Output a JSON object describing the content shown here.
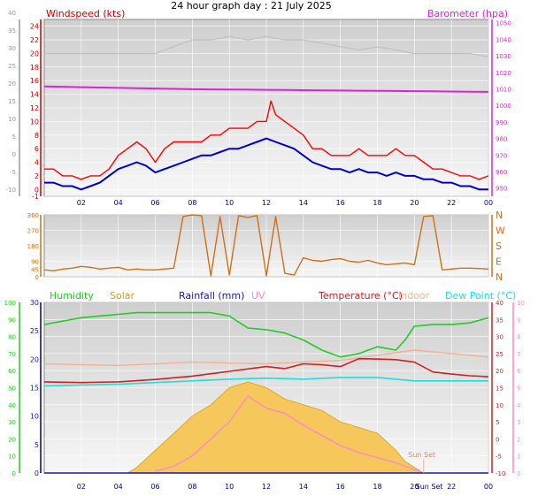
{
  "title": "24 hour graph day : 21 July 2025",
  "colors": {
    "wind_axis": "#cc0000",
    "gust_line": "#ff0000",
    "avg_line": "#0000cc",
    "baro": "#dd22dd",
    "gust_grey": "#c0c0c0",
    "dir": "#d07018",
    "humidity": "#22cc22",
    "solar_fill": "#f6c75a",
    "solar_line": "#d4a020",
    "rain": "#1818aa",
    "uv": "#ff88cc",
    "temp": "#cc2222",
    "indoor": "#f5b090",
    "dewpoint": "#22dddd",
    "plot_bg_top": "#cfcfcf",
    "plot_bg_bottom": "#f6f6f6",
    "frame_navy": "#000080"
  },
  "chart_data": [
    {
      "type": "line",
      "panel": "wind-barometer",
      "title": "24 hour graph day : 21 July 2025",
      "left_label": "Windspeed (kts)",
      "right_label": "Barometer (hpa)",
      "x_ticks": [
        "02",
        "04",
        "06",
        "08",
        "10",
        "12",
        "14",
        "16",
        "18",
        "20",
        "22",
        "00"
      ],
      "x_range_hours": [
        0,
        24
      ],
      "y_left_ticks": [
        "-1",
        "0",
        "2",
        "4",
        "6",
        "8",
        "10",
        "12",
        "14",
        "16",
        "18",
        "20",
        "22",
        "24"
      ],
      "y_outer_ticks": [
        "-10",
        "-5",
        "0",
        "5",
        "10",
        "15",
        "20",
        "25",
        "30",
        "35",
        "40"
      ],
      "y_right_ticks": [
        "950",
        "960",
        "970",
        "980",
        "990",
        "1000",
        "1010",
        "1020",
        "1030",
        "1040",
        "1050"
      ],
      "y_left_range": [
        -1,
        25
      ],
      "y_right_range": [
        945,
        1052
      ],
      "grid": true,
      "series": [
        {
          "name": "Windspeed (kts)",
          "role": "gust",
          "x": [
            0,
            0.5,
            1,
            1.5,
            2,
            2.5,
            3,
            3.5,
            4,
            4.5,
            5,
            5.5,
            6,
            6.5,
            7,
            7.5,
            8,
            8.5,
            9,
            9.5,
            10,
            10.5,
            11,
            11.5,
            12,
            12.25,
            12.5,
            13,
            13.5,
            14,
            14.5,
            15,
            15.5,
            16,
            16.5,
            17,
            17.5,
            18,
            18.5,
            19,
            19.5,
            20,
            20.5,
            21,
            21.5,
            22,
            22.5,
            23,
            23.5,
            24
          ],
          "values": [
            3,
            3,
            2,
            2,
            1.5,
            2,
            2,
            3,
            5,
            6,
            7,
            6,
            4,
            6,
            7,
            7,
            7,
            7,
            8,
            8,
            9,
            9,
            9,
            10,
            10,
            13,
            11,
            10,
            9,
            8,
            6,
            6,
            5,
            5,
            5,
            6,
            5,
            5,
            5,
            6,
            5,
            5,
            4,
            3,
            3,
            2.5,
            2,
            2,
            1.5,
            2
          ]
        },
        {
          "name": "Windspeed (kts)",
          "role": "average",
          "x": [
            0,
            0.5,
            1,
            1.5,
            2,
            2.5,
            3,
            3.5,
            4,
            4.5,
            5,
            5.5,
            6,
            6.5,
            7,
            7.5,
            8,
            8.5,
            9,
            9.5,
            10,
            10.5,
            11,
            11.5,
            12,
            12.5,
            13,
            13.5,
            14,
            14.5,
            15,
            15.5,
            16,
            16.5,
            17,
            17.5,
            18,
            18.5,
            19,
            19.5,
            20,
            20.5,
            21,
            21.5,
            22,
            22.5,
            23,
            23.5,
            24
          ],
          "values": [
            1,
            1,
            0.5,
            0.5,
            0,
            0.5,
            1,
            2,
            3,
            3.5,
            4,
            3.5,
            2.5,
            3,
            3.5,
            4,
            4.5,
            5,
            5,
            5.5,
            6,
            6,
            6.5,
            7,
            7.5,
            7,
            6.5,
            6,
            5,
            4,
            3.5,
            3,
            3,
            2.5,
            3,
            2.5,
            2.5,
            2,
            2.5,
            2,
            2,
            1.5,
            1.5,
            1,
            1,
            0.5,
            0.5,
            0,
            0
          ]
        },
        {
          "name": "Barometer (hpa)",
          "role": "pressure",
          "x": [
            0,
            1,
            2,
            3,
            4,
            5,
            6,
            7,
            8,
            9,
            10,
            11,
            12,
            13,
            14,
            15,
            16,
            17,
            18,
            19,
            20,
            21,
            22,
            23,
            24
          ],
          "values": [
            1011.5,
            1011.3,
            1011,
            1010.8,
            1010.6,
            1010.4,
            1010.2,
            1010,
            1009.8,
            1009.7,
            1009.6,
            1009.5,
            1009.4,
            1009.3,
            1009.2,
            1009.1,
            1009,
            1008.9,
            1008.8,
            1008.7,
            1008.6,
            1008.5,
            1008.4,
            1008.3,
            1008.2
          ]
        },
        {
          "name": "grey trace",
          "role": "secondary",
          "x": [
            0,
            2,
            4,
            6,
            7,
            8,
            9,
            10,
            11,
            12,
            13,
            14,
            15,
            16,
            17,
            18,
            19,
            20,
            21,
            22,
            23,
            24
          ],
          "values": [
            20,
            20,
            20,
            20,
            21,
            22,
            22,
            22.5,
            22,
            22.5,
            22,
            22,
            21.5,
            21,
            20.5,
            21,
            20.5,
            20,
            20,
            20,
            20,
            19.5
          ]
        }
      ]
    },
    {
      "type": "line",
      "panel": "wind-direction",
      "x_range_hours": [
        0,
        24
      ],
      "y_left_ticks": [
        "0",
        "45",
        "90",
        "180",
        "270",
        "360"
      ],
      "y_right_labels": [
        "N",
        "W",
        "S",
        "E",
        "N"
      ],
      "y_range": [
        0,
        360
      ],
      "grid": true,
      "series": [
        {
          "name": "Wind direction",
          "x": [
            0,
            0.5,
            1,
            1.5,
            2,
            2.5,
            3,
            3.5,
            4,
            4.5,
            5,
            5.5,
            6,
            6.5,
            7,
            7.5,
            8,
            8.5,
            9,
            9.5,
            10,
            10.5,
            11,
            11.5,
            12,
            12.5,
            13,
            13.5,
            14,
            14.5,
            15,
            15.5,
            16,
            16.5,
            17,
            17.5,
            18,
            18.5,
            19,
            19.5,
            20,
            20.5,
            21,
            21.5,
            22,
            22.5,
            23,
            23.5,
            24
          ],
          "values": [
            40,
            35,
            45,
            50,
            60,
            55,
            45,
            50,
            55,
            40,
            45,
            40,
            40,
            45,
            50,
            350,
            360,
            355,
            5,
            350,
            10,
            355,
            345,
            355,
            5,
            350,
            20,
            10,
            110,
            95,
            90,
            100,
            105,
            90,
            85,
            95,
            80,
            70,
            75,
            80,
            70,
            350,
            355,
            40,
            45,
            50,
            50,
            48,
            45
          ]
        }
      ]
    },
    {
      "type": "area",
      "panel": "climate",
      "legend": [
        "Humidity",
        "Solar",
        "Rainfall (mm)",
        "UV",
        "Temperature (°C)",
        "Indoor",
        "Dew Point (°C)"
      ],
      "x_ticks": [
        "02",
        "04",
        "06",
        "08",
        "10",
        "12",
        "14",
        "16",
        "18",
        "20",
        "22",
        "00"
      ],
      "x_range_hours": [
        0,
        24
      ],
      "y_humidity_ticks": [
        "0",
        "10",
        "20",
        "30",
        "40",
        "50",
        "60",
        "70",
        "80",
        "90",
        "100"
      ],
      "y_rain_ticks": [
        "0",
        "5",
        "10",
        "15",
        "20",
        "25",
        "30"
      ],
      "y_temp_ticks": [
        "-10",
        "-5",
        "0",
        "5",
        "10",
        "15",
        "20",
        "25",
        "30",
        "35",
        "40"
      ],
      "y_uv_ticks": [
        "0",
        "1",
        "2",
        "3",
        "4",
        "5",
        "6",
        "7",
        "8",
        "9",
        "10"
      ],
      "sun_set_labels": [
        "Sun Set",
        "Sun Set"
      ],
      "grid": true,
      "series": [
        {
          "name": "Humidity",
          "x": [
            0,
            1,
            2,
            3,
            4,
            5,
            6,
            7,
            8,
            9,
            10,
            11,
            12,
            13,
            14,
            15,
            16,
            17,
            18,
            19,
            19.5,
            20,
            21,
            22,
            23,
            24
          ],
          "values": [
            87,
            89,
            91,
            92,
            93,
            94,
            94,
            94,
            94,
            94,
            92,
            85,
            84,
            82,
            78,
            72,
            68,
            70,
            74,
            72,
            78,
            86,
            87,
            87,
            88,
            91
          ],
          "scale": "humidity"
        },
        {
          "name": "Solar",
          "x": [
            4.5,
            5,
            6,
            7,
            8,
            9,
            10,
            11,
            12,
            13,
            14,
            15,
            16,
            17,
            18,
            19,
            19.5,
            20,
            20.5
          ],
          "values": [
            0,
            1,
            4,
            7,
            10,
            12,
            15,
            16,
            15,
            13,
            12,
            11,
            9,
            8,
            7,
            4,
            2,
            1,
            0
          ],
          "scale": "rainfall_left"
        },
        {
          "name": "Rainfall (mm)",
          "x": [
            0,
            24
          ],
          "values": [
            0,
            0
          ],
          "scale": "rainfall_left"
        },
        {
          "name": "UV",
          "x": [
            6,
            7,
            8,
            9,
            10,
            11,
            12,
            13,
            14,
            15,
            16,
            17,
            18,
            19,
            20,
            20.5
          ],
          "values": [
            0.1,
            0.4,
            1.0,
            2.0,
            3.0,
            4.5,
            3.8,
            3.5,
            2.8,
            2.2,
            1.6,
            1.2,
            0.9,
            0.6,
            0.2,
            0.0
          ],
          "scale": "uv"
        },
        {
          "name": "Temperature (°C)",
          "x": [
            0,
            2,
            4,
            6,
            8,
            10,
            12,
            13,
            14,
            15,
            16,
            17,
            18,
            19,
            20,
            21,
            22,
            23,
            24
          ],
          "values": [
            16.7,
            16.5,
            16.7,
            17.4,
            18.4,
            19.8,
            21.2,
            20.6,
            22.0,
            21.7,
            21.2,
            23.5,
            23.4,
            23.2,
            22.5,
            19.6,
            19,
            18.5,
            18.2
          ],
          "scale": "temp"
        },
        {
          "name": "Indoor",
          "x": [
            0,
            4,
            8,
            12,
            16,
            20,
            24
          ],
          "values": [
            22,
            21.5,
            22.5,
            22,
            23,
            26,
            24
          ],
          "scale": "temp"
        },
        {
          "name": "Dew Point (°C)",
          "x": [
            0,
            2,
            4,
            6,
            8,
            10,
            12,
            14,
            16,
            18,
            19,
            20,
            22,
            24
          ],
          "values": [
            15.5,
            15.8,
            16,
            16.5,
            17,
            17.5,
            17.8,
            17.5,
            18,
            18,
            17.5,
            17,
            17,
            17
          ],
          "scale": "temp"
        }
      ]
    }
  ]
}
